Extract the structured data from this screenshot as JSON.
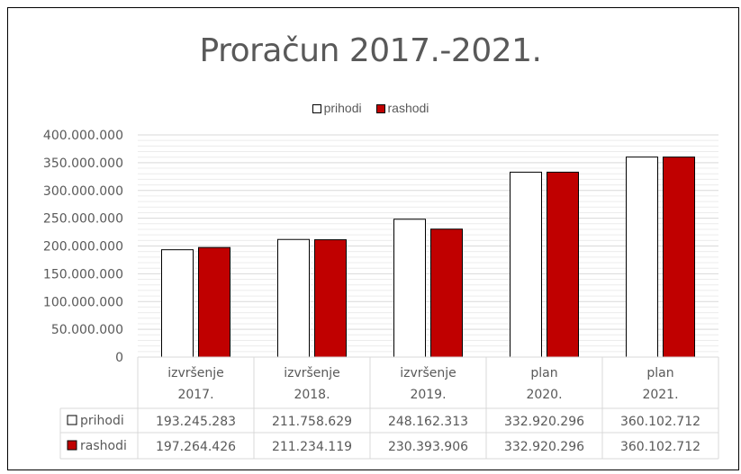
{
  "chart_data": {
    "type": "bar",
    "title": "Proračun 2017.-2021.",
    "categories": [
      [
        "izvršenje",
        "2017."
      ],
      [
        "izvršenje",
        "2018."
      ],
      [
        "izvršenje",
        "2019."
      ],
      [
        "plan",
        "2020."
      ],
      [
        "plan",
        "2021."
      ]
    ],
    "series": [
      {
        "name": "prihodi",
        "color": "#ffffff",
        "values": [
          193245283,
          211758629,
          248162313,
          332920296,
          360102712
        ],
        "labels": [
          "193.245.283",
          "211.758.629",
          "248.162.313",
          "332.920.296",
          "360.102.712"
        ]
      },
      {
        "name": "rashodi",
        "color": "#c00000",
        "values": [
          197264426,
          211234119,
          230393906,
          332920296,
          360102712
        ],
        "labels": [
          "197.264.426",
          "211.234.119",
          "230.393.906",
          "332.920.296",
          "360.102.712"
        ]
      }
    ],
    "ylim": [
      0,
      400000000
    ],
    "yticks": [
      "0",
      "50.000.000",
      "100.000.000",
      "150.000.000",
      "200.000.000",
      "250.000.000",
      "300.000.000",
      "350.000.000",
      "400.000.000"
    ],
    "grid": true,
    "legend": "top",
    "data_table": true
  }
}
